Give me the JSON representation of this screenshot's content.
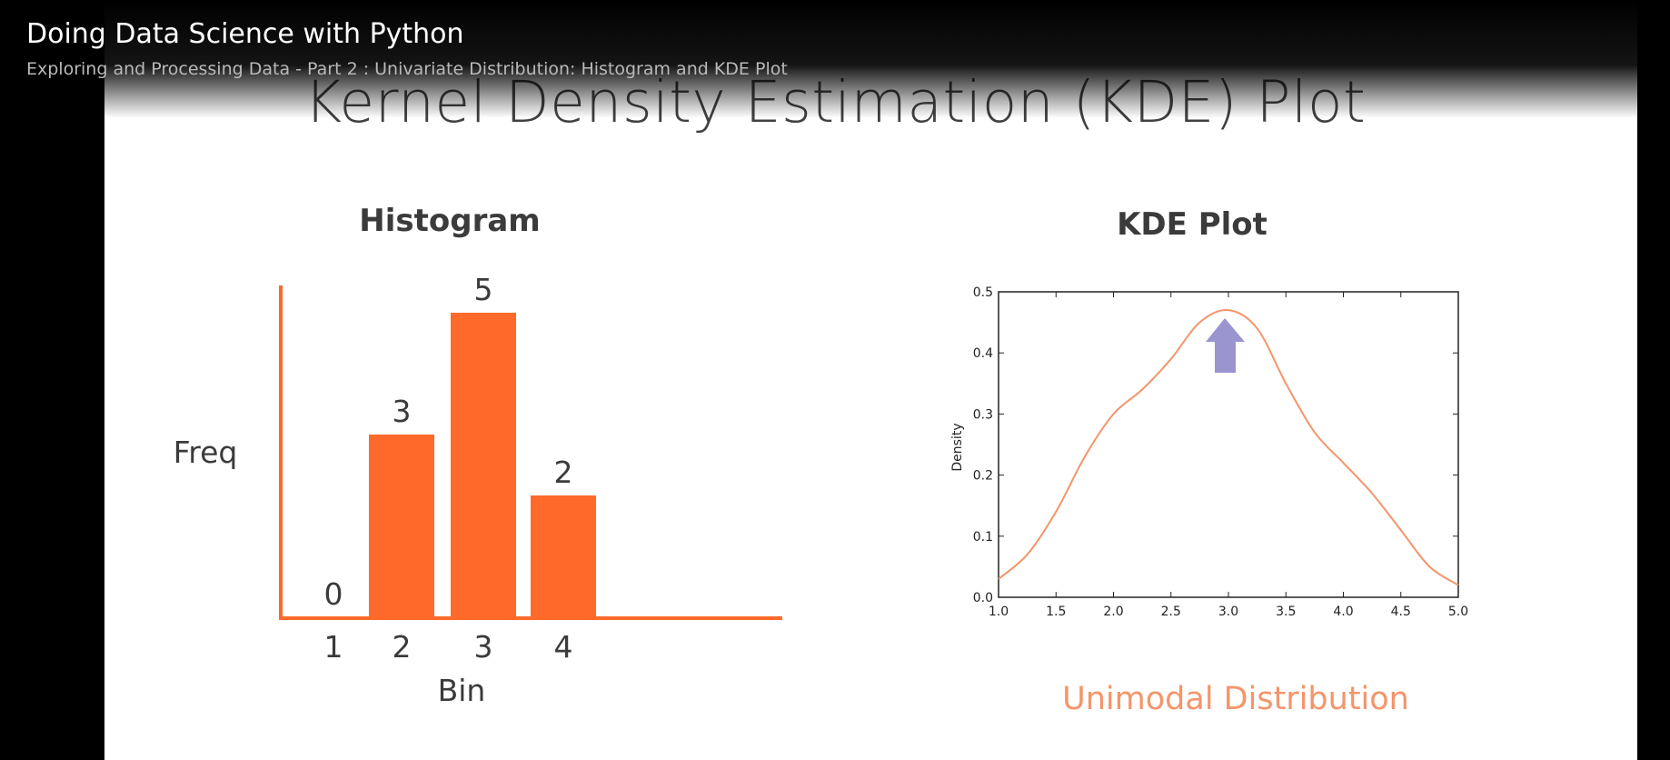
{
  "header": {
    "course_title": "Doing Data Science with Python",
    "module_title": "Exploring and Processing Data - Part 2 : Univariate Distribution: Histogram and KDE Plot"
  },
  "slide": {
    "title": "Kernel Density Estimation (KDE) Plot",
    "distribution_label": "Unimodal Distribution"
  },
  "colors": {
    "histogram_bar": "#ff6a2a",
    "kde_line": "#f4956a",
    "arrow": "#9a94cf",
    "distribution_label": "#f4956a"
  },
  "chart_data": [
    {
      "type": "bar",
      "title": "Histogram",
      "xlabel": "Bin",
      "ylabel": "Freq",
      "categories": [
        "1",
        "2",
        "3",
        "4"
      ],
      "values": [
        0,
        3,
        5,
        2
      ],
      "data_labels": [
        "0",
        "3",
        "5",
        "2"
      ],
      "ylim": [
        0,
        5.5
      ],
      "grid": false
    },
    {
      "type": "line",
      "title": "KDE Plot",
      "xlabel": "",
      "ylabel": "Density",
      "xlim": [
        1.0,
        5.0
      ],
      "ylim": [
        0.0,
        0.5
      ],
      "xticks": [
        "1.0",
        "1.5",
        "2.0",
        "2.5",
        "3.0",
        "3.5",
        "4.0",
        "4.5",
        "5.0"
      ],
      "yticks": [
        "0.0",
        "0.1",
        "0.2",
        "0.3",
        "0.4",
        "0.5"
      ],
      "x": [
        1.0,
        1.25,
        1.5,
        1.75,
        2.0,
        2.25,
        2.5,
        2.75,
        3.0,
        3.25,
        3.5,
        3.75,
        4.0,
        4.25,
        4.5,
        4.75,
        5.0
      ],
      "y": [
        0.03,
        0.07,
        0.14,
        0.23,
        0.3,
        0.34,
        0.39,
        0.45,
        0.47,
        0.44,
        0.35,
        0.27,
        0.22,
        0.17,
        0.11,
        0.05,
        0.02
      ],
      "grid": false,
      "annotation": "arrow pointing to peak near x=3.0"
    }
  ]
}
